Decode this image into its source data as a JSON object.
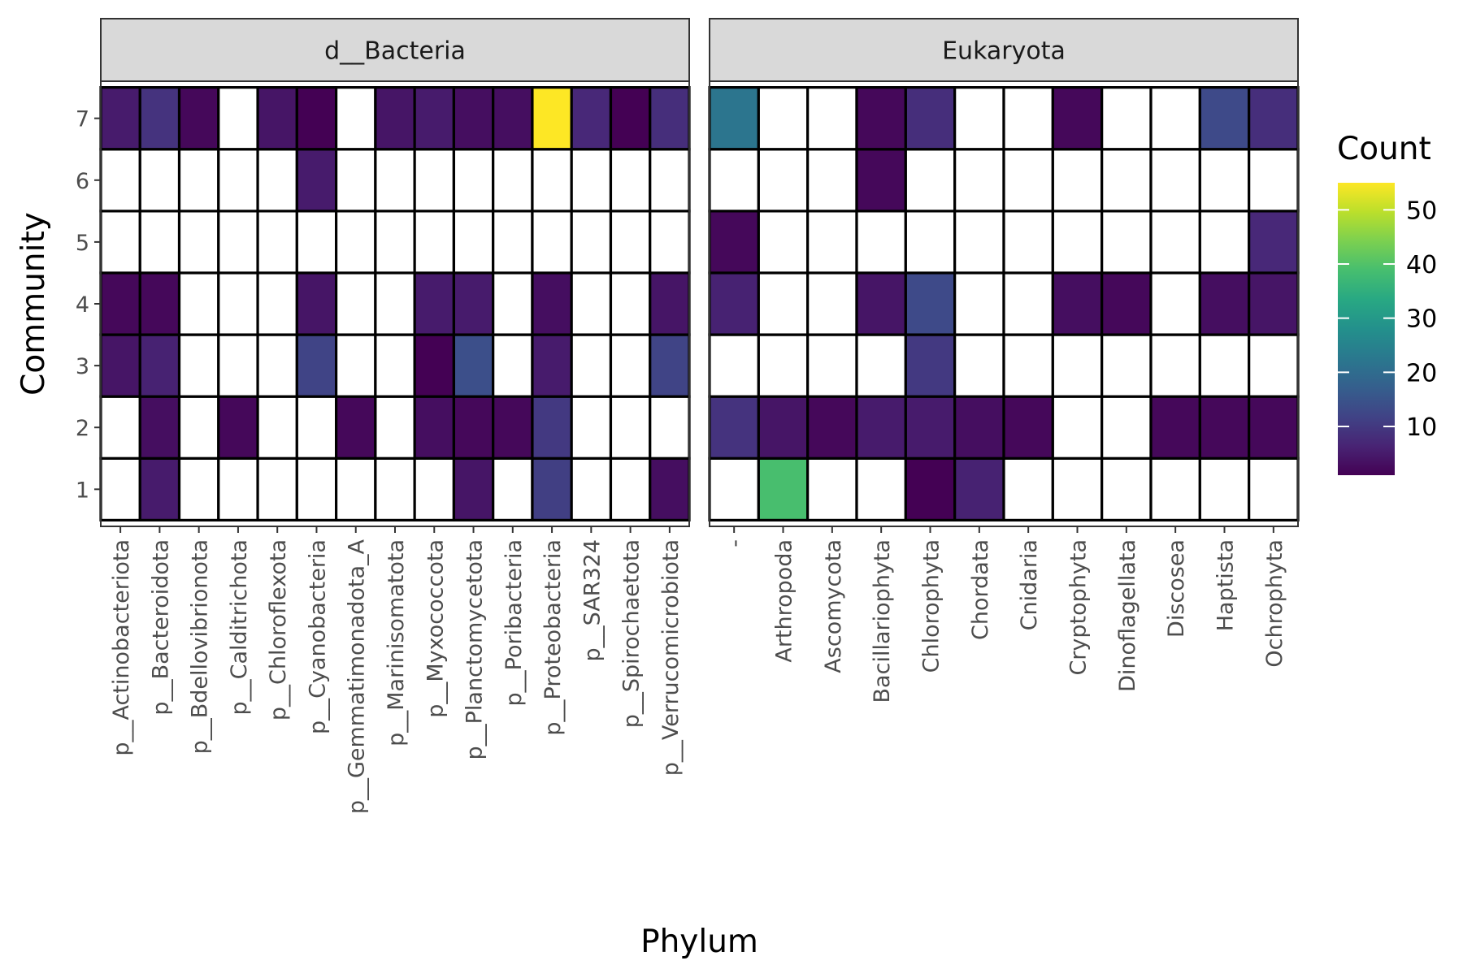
{
  "chart_data": {
    "type": "heatmap",
    "title": "",
    "xlabel": "Phylum",
    "ylabel": "Community",
    "y_categories": [
      "1",
      "2",
      "3",
      "4",
      "5",
      "6",
      "7"
    ],
    "fill_scale": {
      "name": "Count",
      "palette": "viridis",
      "range": [
        1,
        55
      ],
      "breaks": [
        10,
        20,
        30,
        40,
        50
      ]
    },
    "empty_cell_color": "#ffffff",
    "facets": [
      {
        "label": "d__Bacteria",
        "x_categories": [
          "p__Actinobacteriota",
          "p__Bacteroidota",
          "p__Bdellovibrionota",
          "p__Calditrichota",
          "p__Chloroflexota",
          "p__Cyanobacteria",
          "p__Gemmatimonadota_A",
          "p__Marinisomatota",
          "p__Myxococcota",
          "p__Planctomycetota",
          "p__Poribacteria",
          "p__Proteobacteria",
          "p__SAR324",
          "p__Spirochaetota",
          "p__Verrucomicrobiota"
        ],
        "cells": [
          {
            "x": "p__Bacteroidota",
            "y": "1",
            "value": 5
          },
          {
            "x": "p__Planctomycetota",
            "y": "1",
            "value": 4
          },
          {
            "x": "p__Proteobacteria",
            "y": "1",
            "value": 11
          },
          {
            "x": "p__Verrucomicrobiota",
            "y": "1",
            "value": 3
          },
          {
            "x": "p__Bacteroidota",
            "y": "2",
            "value": 3
          },
          {
            "x": "p__Calditrichota",
            "y": "2",
            "value": 2
          },
          {
            "x": "p__Gemmatimonadota_A",
            "y": "2",
            "value": 2
          },
          {
            "x": "p__Myxococcota",
            "y": "2",
            "value": 3
          },
          {
            "x": "p__Planctomycetota",
            "y": "2",
            "value": 2
          },
          {
            "x": "p__Poribacteria",
            "y": "2",
            "value": 2
          },
          {
            "x": "p__Proteobacteria",
            "y": "2",
            "value": 10
          },
          {
            "x": "p__Actinobacteriota",
            "y": "3",
            "value": 4
          },
          {
            "x": "p__Bacteroidota",
            "y": "3",
            "value": 6
          },
          {
            "x": "p__Cyanobacteria",
            "y": "3",
            "value": 12
          },
          {
            "x": "p__Myxococcota",
            "y": "3",
            "value": 1
          },
          {
            "x": "p__Planctomycetota",
            "y": "3",
            "value": 14
          },
          {
            "x": "p__Proteobacteria",
            "y": "3",
            "value": 5
          },
          {
            "x": "p__Verrucomicrobiota",
            "y": "3",
            "value": 12
          },
          {
            "x": "p__Actinobacteriota",
            "y": "4",
            "value": 2
          },
          {
            "x": "p__Bacteroidota",
            "y": "4",
            "value": 2
          },
          {
            "x": "p__Cyanobacteria",
            "y": "4",
            "value": 4
          },
          {
            "x": "p__Myxococcota",
            "y": "4",
            "value": 5
          },
          {
            "x": "p__Planctomycetota",
            "y": "4",
            "value": 5
          },
          {
            "x": "p__Proteobacteria",
            "y": "4",
            "value": 3
          },
          {
            "x": "p__Verrucomicrobiota",
            "y": "4",
            "value": 4
          },
          {
            "x": "p__Cyanobacteria",
            "y": "6",
            "value": 5
          },
          {
            "x": "p__Actinobacteriota",
            "y": "7",
            "value": 5
          },
          {
            "x": "p__Bacteroidota",
            "y": "7",
            "value": 9
          },
          {
            "x": "p__Bdellovibrionota",
            "y": "7",
            "value": 2
          },
          {
            "x": "p__Chloroflexota",
            "y": "7",
            "value": 4
          },
          {
            "x": "p__Cyanobacteria",
            "y": "7",
            "value": 1
          },
          {
            "x": "p__Marinisomatota",
            "y": "7",
            "value": 4
          },
          {
            "x": "p__Myxococcota",
            "y": "7",
            "value": 5
          },
          {
            "x": "p__Planctomycetota",
            "y": "7",
            "value": 3
          },
          {
            "x": "p__Poribacteria",
            "y": "7",
            "value": 3
          },
          {
            "x": "p__Proteobacteria",
            "y": "7",
            "value": 55
          },
          {
            "x": "p__SAR324",
            "y": "7",
            "value": 7
          },
          {
            "x": "p__Spirochaetota",
            "y": "7",
            "value": 1
          },
          {
            "x": "p__Verrucomicrobiota",
            "y": "7",
            "value": 8
          }
        ]
      },
      {
        "label": "Eukaryota",
        "x_categories": [
          "-",
          "Arthropoda",
          "Ascomycota",
          "Bacillariophyta",
          "Chlorophyta",
          "Chordata",
          "Cnidaria",
          "Cryptophyta",
          "Dinoflagellata",
          "Discosea",
          "Haptista",
          "Ochrophyta"
        ],
        "cells": [
          {
            "x": "Arthropoda",
            "y": "1",
            "value": 39
          },
          {
            "x": "Chlorophyta",
            "y": "1",
            "value": 1
          },
          {
            "x": "Chordata",
            "y": "1",
            "value": 6
          },
          {
            "x": "-",
            "y": "2",
            "value": 9
          },
          {
            "x": "Arthropoda",
            "y": "2",
            "value": 4
          },
          {
            "x": "Ascomycota",
            "y": "2",
            "value": 2
          },
          {
            "x": "Bacillariophyta",
            "y": "2",
            "value": 5
          },
          {
            "x": "Chlorophyta",
            "y": "2",
            "value": 5
          },
          {
            "x": "Chordata",
            "y": "2",
            "value": 3
          },
          {
            "x": "Cnidaria",
            "y": "2",
            "value": 2
          },
          {
            "x": "Discosea",
            "y": "2",
            "value": 2
          },
          {
            "x": "Haptista",
            "y": "2",
            "value": 2
          },
          {
            "x": "Ochrophyta",
            "y": "2",
            "value": 2
          },
          {
            "x": "Chlorophyta",
            "y": "3",
            "value": 10
          },
          {
            "x": "-",
            "y": "4",
            "value": 6
          },
          {
            "x": "Bacillariophyta",
            "y": "4",
            "value": 4
          },
          {
            "x": "Chlorophyta",
            "y": "4",
            "value": 13
          },
          {
            "x": "Cryptophyta",
            "y": "4",
            "value": 3
          },
          {
            "x": "Dinoflagellata",
            "y": "4",
            "value": 2
          },
          {
            "x": "Haptista",
            "y": "4",
            "value": 3
          },
          {
            "x": "Ochrophyta",
            "y": "4",
            "value": 4
          },
          {
            "x": "-",
            "y": "5",
            "value": 2
          },
          {
            "x": "Ochrophyta",
            "y": "5",
            "value": 7
          },
          {
            "x": "Bacillariophyta",
            "y": "6",
            "value": 2
          },
          {
            "x": "-",
            "y": "7",
            "value": 22
          },
          {
            "x": "Bacillariophyta",
            "y": "7",
            "value": 2
          },
          {
            "x": "Chlorophyta",
            "y": "7",
            "value": 8
          },
          {
            "x": "Cryptophyta",
            "y": "7",
            "value": 2
          },
          {
            "x": "Haptista",
            "y": "7",
            "value": 13
          },
          {
            "x": "Ochrophyta",
            "y": "7",
            "value": 8
          }
        ]
      }
    ]
  }
}
